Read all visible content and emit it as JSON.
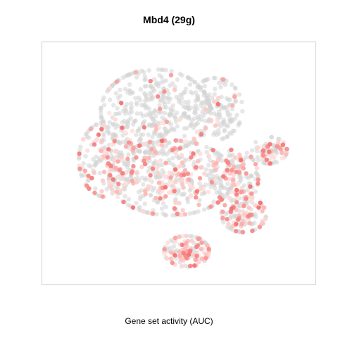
{
  "chart_data": {
    "type": "scatter",
    "title": "Mbd4 (29g)",
    "xlabel": "Gene set activity (AUC)",
    "ylabel": "",
    "grid": false,
    "legend": "none",
    "xlim": [
      0,
      100
    ],
    "ylim": [
      0,
      100
    ],
    "colors": {
      "background_point": "#d3d3d3",
      "low": "#ffe3e0",
      "high": "#f46a6a",
      "frame": "#cfcfcf"
    },
    "clusters": [
      {
        "name": "upper-body",
        "cx": 41,
        "cy": 73,
        "rx": 22,
        "ry": 19,
        "n": 420,
        "active_frac": 0.06
      },
      {
        "name": "upper-right",
        "cx": 64,
        "cy": 74,
        "rx": 11,
        "ry": 14,
        "n": 150,
        "active_frac": 0.08
      },
      {
        "name": "left-mid",
        "cx": 22,
        "cy": 52,
        "rx": 11,
        "ry": 17,
        "n": 200,
        "active_frac": 0.35
      },
      {
        "name": "center",
        "cx": 47,
        "cy": 44,
        "rx": 25,
        "ry": 17,
        "n": 480,
        "active_frac": 0.32
      },
      {
        "name": "right-mid",
        "cx": 72,
        "cy": 44,
        "rx": 9,
        "ry": 13,
        "n": 160,
        "active_frac": 0.3
      },
      {
        "name": "right-lower",
        "cx": 75,
        "cy": 28,
        "rx": 9,
        "ry": 8,
        "n": 120,
        "active_frac": 0.45
      },
      {
        "name": "bottom-lobe",
        "cx": 53,
        "cy": 12,
        "rx": 9,
        "ry": 7,
        "n": 130,
        "active_frac": 0.55
      },
      {
        "name": "far-right-island",
        "cx": 85,
        "cy": 56,
        "rx": 7,
        "ry": 6,
        "n": 80,
        "active_frac": 0.45
      }
    ]
  }
}
